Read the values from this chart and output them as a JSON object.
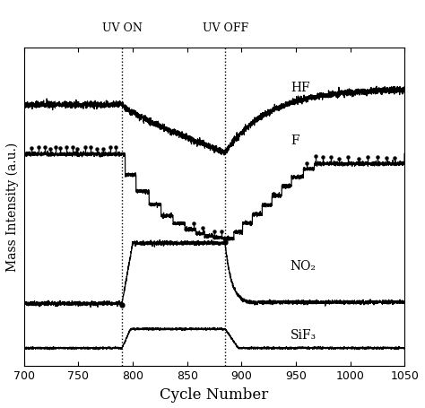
{
  "xlim": [
    700,
    1050
  ],
  "xlabel": "Cycle Number",
  "ylabel": "Mass Intensity (a.u.)",
  "uv_on": 790,
  "uv_off": 885,
  "uv_on_label": "UV ON",
  "uv_off_label": "UV OFF",
  "hf_label": "HF",
  "f_label": "F",
  "no2_label": "NO₂",
  "sif3_label": "SiF₃",
  "background_color": "#ffffff",
  "figsize": [
    4.74,
    4.56
  ],
  "dpi": 100,
  "hf_base": 0.82,
  "hf_min": 0.67,
  "hf_recover": 0.87,
  "f_base": 0.665,
  "f_min": 0.4,
  "no2_base": 0.195,
  "no2_peak": 0.385,
  "sif3_base": 0.055,
  "sif3_peak": 0.115
}
